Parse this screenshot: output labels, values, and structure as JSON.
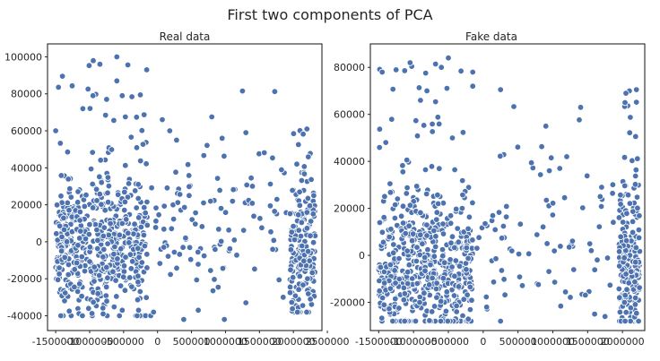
{
  "figure": {
    "suptitle": "First two components of PCA"
  },
  "colors": {
    "point": "#4c72b0",
    "point_edge": "#ffffff",
    "frame": "#262626"
  },
  "chart_data": [
    {
      "type": "scatter",
      "title": "Real data",
      "xlabel": "",
      "ylabel": "",
      "xlim": [
        -1620000,
        2420000
      ],
      "ylim": [
        -48000,
        107000
      ],
      "xticks": [
        -1500000,
        -1000000,
        -500000,
        0,
        500000,
        1000000,
        1500000,
        2000000,
        2500000
      ],
      "xtick_labels": [
        "-1500000",
        "-1000000",
        "-500000",
        "0",
        "500000",
        "1000000",
        "1500000",
        "2000000",
        "2500000"
      ],
      "yticks": [
        -40000,
        -20000,
        0,
        20000,
        40000,
        60000,
        80000,
        100000
      ],
      "ytick_labels": [
        "-40000",
        "-20000",
        "0",
        "20000",
        "40000",
        "60000",
        "80000",
        "100000"
      ],
      "grid": false,
      "clusters": [
        {
          "x_range": [
            -1500000,
            -150000
          ],
          "y_range": [
            -40000,
            100000
          ],
          "approx_count": 560,
          "y_center": -5000,
          "y_spread": 18000
        },
        {
          "x_range": [
            -100000,
            1900000
          ],
          "y_range": [
            -42000,
            82000
          ],
          "approx_count": 110,
          "y_center": 10000,
          "y_spread": 22000
        },
        {
          "x_range": [
            1950000,
            2320000
          ],
          "y_range": [
            -38000,
            62000
          ],
          "approx_count": 200,
          "y_center": -2000,
          "y_spread": 18000
        }
      ],
      "points": [
        {
          "x": -600000,
          "y": 100000
        },
        {
          "x": -160000,
          "y": 93000
        },
        {
          "x": 1250000,
          "y": 81500
        },
        {
          "x": -600000,
          "y": 87000
        },
        {
          "x": -1100000,
          "y": 72000
        },
        {
          "x": -950000,
          "y": 79000
        },
        {
          "x": -520000,
          "y": 79000
        },
        {
          "x": -750000,
          "y": 77000
        },
        {
          "x": 70000,
          "y": 66000
        },
        {
          "x": 1300000,
          "y": 59000
        },
        {
          "x": 2200000,
          "y": 61000
        },
        {
          "x": 950000,
          "y": 56000
        },
        {
          "x": -1500000,
          "y": 60000
        },
        {
          "x": 280000,
          "y": 55000
        },
        {
          "x": 180000,
          "y": 60000
        },
        {
          "x": 2050000,
          "y": 42000
        },
        {
          "x": -100000,
          "y": -40000
        },
        {
          "x": -60000,
          "y": -38000
        },
        {
          "x": -520000,
          "y": -37000
        },
        {
          "x": -280000,
          "y": -37000
        },
        {
          "x": -1300000,
          "y": -37500
        },
        {
          "x": 2060000,
          "y": -38000
        },
        {
          "x": 2250000,
          "y": -31000
        },
        {
          "x": 600000,
          "y": -37000
        },
        {
          "x": 1300000,
          "y": -33000
        },
        {
          "x": 1850000,
          "y": -30000
        }
      ]
    },
    {
      "type": "scatter",
      "title": "Fake data",
      "xlabel": "",
      "ylabel": "",
      "xlim": [
        -1620000,
        2320000
      ],
      "ylim": [
        -32000,
        90000
      ],
      "xticks": [
        -1500000,
        -1000000,
        -500000,
        0,
        500000,
        1000000,
        1500000,
        2000000
      ],
      "xtick_labels": [
        "-1500000",
        "-1000000",
        "-500000",
        "0",
        "500000",
        "1000000",
        "1500000",
        "2000000"
      ],
      "yticks": [
        -20000,
        0,
        20000,
        40000,
        60000,
        80000
      ],
      "ytick_labels": [
        "-20000",
        "0",
        "20000",
        "40000",
        "60000",
        "80000"
      ],
      "grid": false,
      "clusters": [
        {
          "x_range": [
            -1500000,
            -150000
          ],
          "y_range": [
            -28000,
            84000
          ],
          "approx_count": 560,
          "y_center": -5000,
          "y_spread": 16000
        },
        {
          "x_range": [
            -100000,
            1900000
          ],
          "y_range": [
            -28000,
            64000
          ],
          "approx_count": 80,
          "y_center": 5000,
          "y_spread": 18000
        },
        {
          "x_range": [
            1950000,
            2250000
          ],
          "y_range": [
            -28000,
            71000
          ],
          "approx_count": 220,
          "y_center": -5000,
          "y_spread": 15000
        }
      ],
      "points": [
        {
          "x": -500000,
          "y": 84000
        },
        {
          "x": -1050000,
          "y": 82000
        },
        {
          "x": -1450000,
          "y": 78000
        },
        {
          "x": -150000,
          "y": 78000
        },
        {
          "x": -1250000,
          "y": 79000
        },
        {
          "x": -600000,
          "y": 80000
        },
        {
          "x": 250000,
          "y": 70500
        },
        {
          "x": 2100000,
          "y": 70000
        },
        {
          "x": 2200000,
          "y": 70500
        },
        {
          "x": 2050000,
          "y": 69000
        },
        {
          "x": 1400000,
          "y": 63000
        },
        {
          "x": 900000,
          "y": 55000
        },
        {
          "x": -150000,
          "y": 72000
        },
        {
          "x": -900000,
          "y": 66000
        },
        {
          "x": 1100000,
          "y": 37000
        },
        {
          "x": 950000,
          "y": 36000
        },
        {
          "x": 1200000,
          "y": 42000
        },
        {
          "x": 1750000,
          "y": -26000
        },
        {
          "x": 1600000,
          "y": -25000
        },
        {
          "x": 250000,
          "y": -28000
        },
        {
          "x": 50000,
          "y": -22000
        }
      ]
    }
  ]
}
